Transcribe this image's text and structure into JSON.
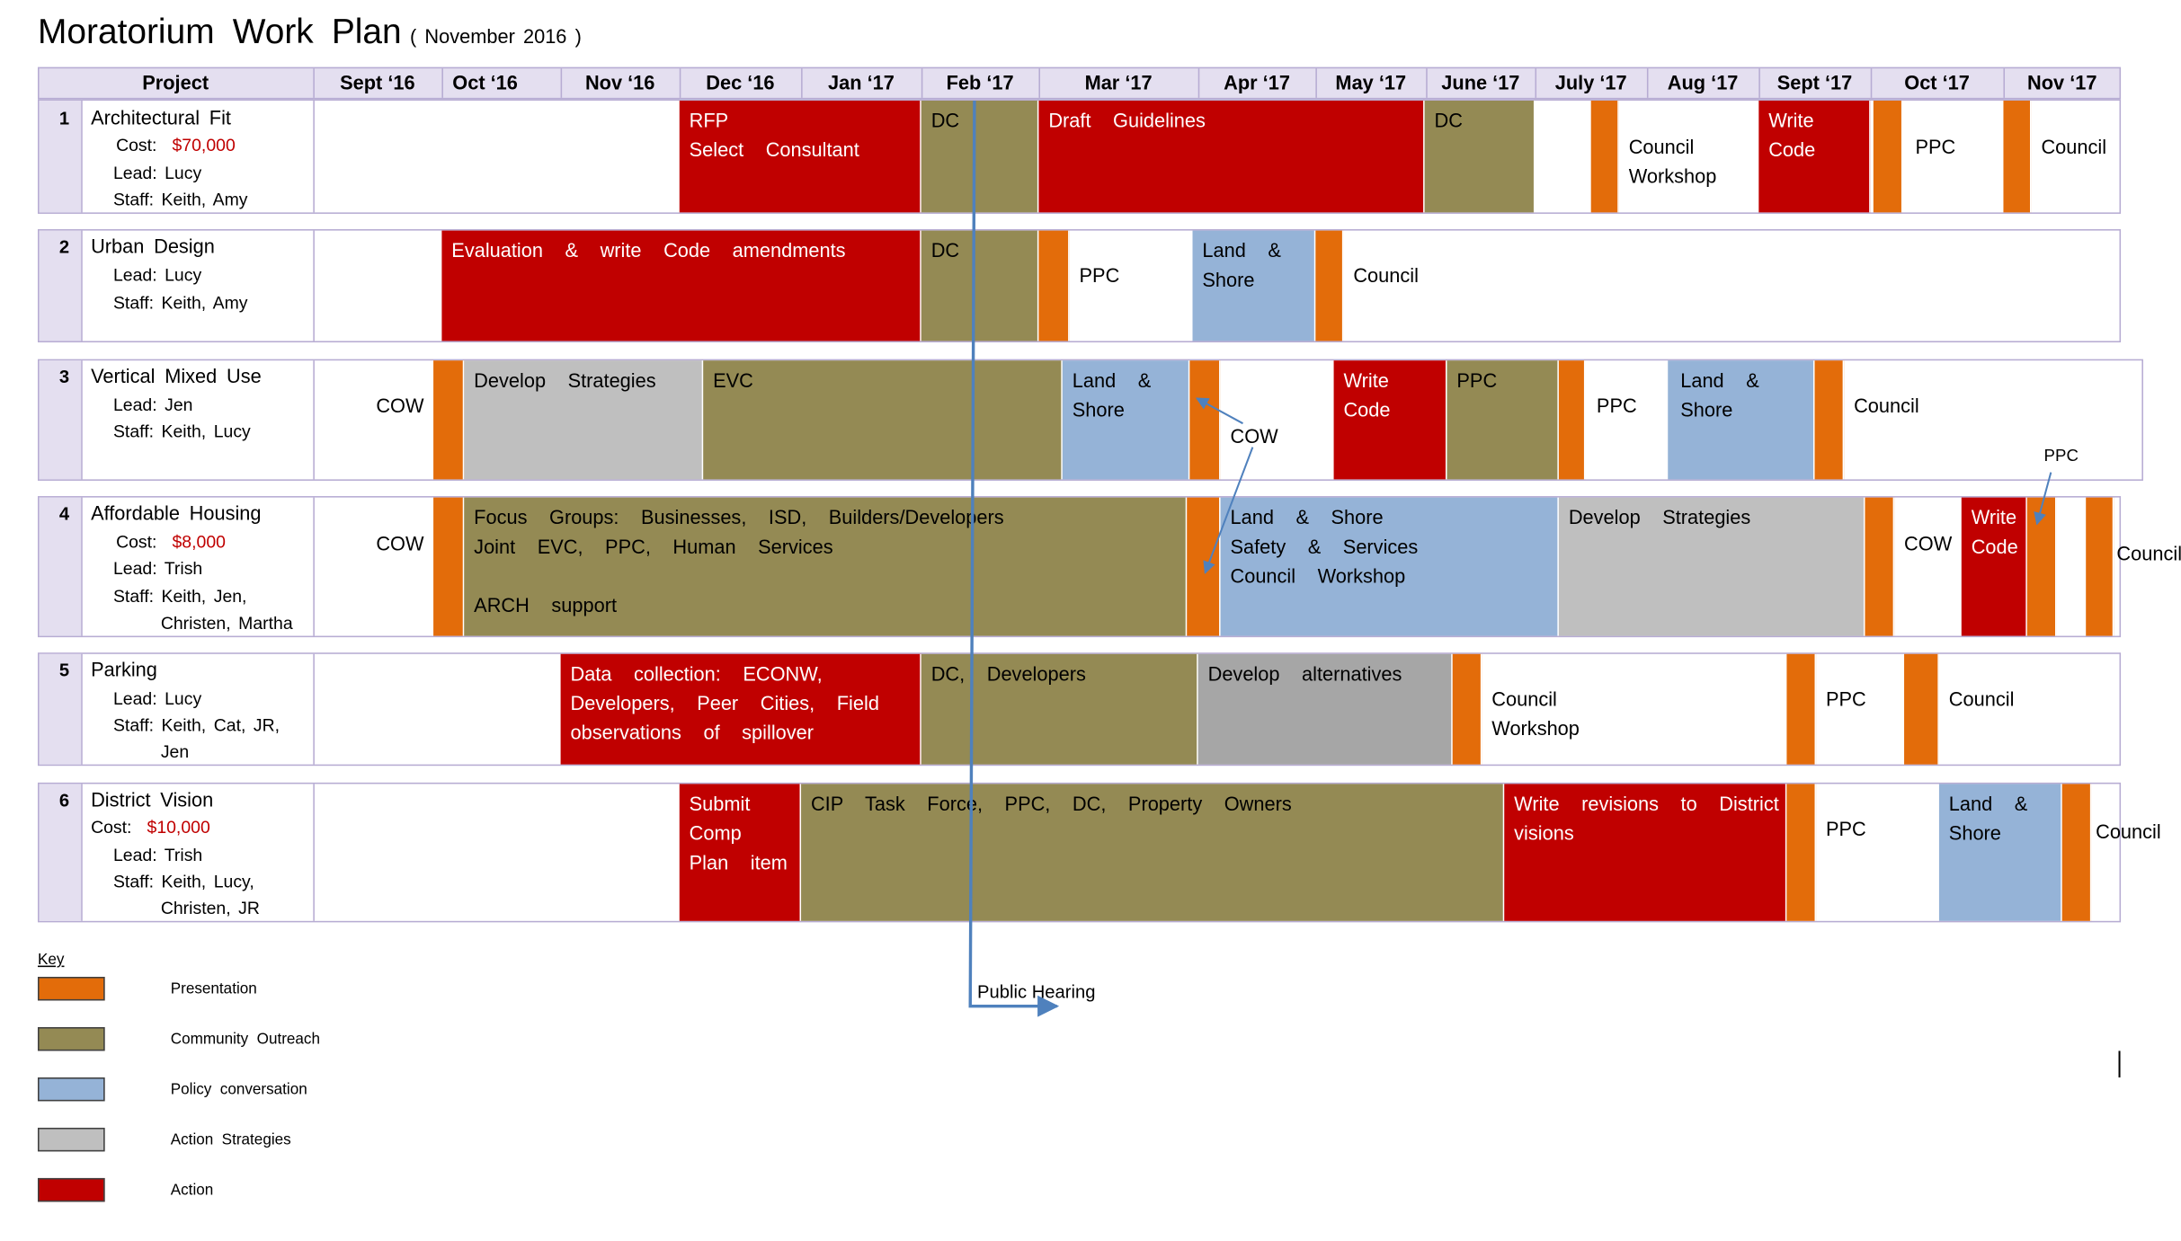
{
  "title": "Moratorium  Work  Plan",
  "subtitle": "( November  2016 )",
  "header": {
    "project": "Project",
    "months": [
      "Sept ‘16",
      "Oct ‘16",
      "Nov ‘16",
      "Dec ‘16",
      "Jan ‘17",
      "Feb ‘17",
      "Mar ‘17",
      "Apr ‘17",
      "May ‘17",
      "June ‘17",
      "July ‘17",
      "Aug ‘17",
      "Sept ‘17",
      "Oct ‘17",
      "Nov ‘17"
    ]
  },
  "colors": {
    "presentation": "#e36c0a",
    "community_outreach": "#948a54",
    "policy_conversation": "#95b3d7",
    "action_strategies": "#bfbfbf",
    "action": "#c00000",
    "grid": "#b7acd3",
    "header_bg": "#e4dff0",
    "arrow": "#4f81bd"
  },
  "projects": [
    {
      "num": "1",
      "name": "Architectural  Fit",
      "cost_label": "Cost:",
      "cost": "$70,000",
      "lead": "Lead:  Lucy",
      "staff": "Staff:  Keith,  Amy",
      "texts": [
        "RFP\nSelect  Consultant",
        "DC",
        "Draft  Guidelines",
        "DC",
        "Council\nWorkshop",
        "Write\nCode",
        "PPC",
        "Council"
      ]
    },
    {
      "num": "2",
      "name": "Urban  Design",
      "lead": "Lead:  Lucy",
      "staff": "Staff:  Keith,  Amy",
      "texts": [
        "Evaluation  &  write  Code  amendments",
        "DC",
        "PPC",
        "Land  &\nShore",
        "Council"
      ]
    },
    {
      "num": "3",
      "name": "Vertical  Mixed  Use",
      "lead": "Lead:  Jen",
      "staff": "Staff:  Keith,  Lucy",
      "texts": [
        "COW",
        "Develop  Strategies",
        "EVC",
        "Land  &\nShore",
        "COW",
        "Write\nCode",
        "PPC",
        "PPC",
        "Land  &\nShore",
        "Council",
        "PPC"
      ]
    },
    {
      "num": "4",
      "name": "Affordable  Housing",
      "cost_label": "Cost:",
      "cost": "$8,000",
      "lead": "Lead:  Trish",
      "staff": "Staff:  Keith,  Jen,",
      "staff2": "Christen,  Martha",
      "texts": [
        "COW",
        "Focus  Groups:  Businesses,  ISD,  Builders/Developers\nJoint  EVC,  PPC,  Human  Services\n\nARCH  support",
        "Land  &  Shore\nSafety  &  Services\nCouncil  Workshop",
        "Develop  Strategies",
        "COW",
        "Write\nCode",
        "Council"
      ]
    },
    {
      "num": "5",
      "name": "Parking",
      "lead": "Lead:  Lucy",
      "staff": "Staff:  Keith,  Cat,  JR,",
      "staff2": "Jen",
      "texts": [
        "Data  collection:  ECONW,\nDevelopers,  Peer  Cities,  Field\nobservations  of  spillover",
        "DC,  Developers",
        "Develop  alternatives",
        "Council\nWorkshop",
        "PPC",
        "Council"
      ]
    },
    {
      "num": "6",
      "name": "District  Vision",
      "cost_label": "Cost:",
      "cost": "$10,000",
      "lead": "Lead:  Trish",
      "staff": "Staff:  Keith,  Lucy,",
      "staff2": "Christen,  JR",
      "texts": [
        "Submit\nComp\nPlan  item",
        "CIP  Task  Force,  PPC,  DC,  Property  Owners",
        "Write  revisions  to  District\nvisions",
        "PPC",
        "Land  &\nShore",
        "Council"
      ]
    }
  ],
  "public_hearing": "Public Hearing",
  "key": {
    "label": "Key",
    "items": [
      {
        "name": "Presentation",
        "color": "#e36c0a"
      },
      {
        "name": "Community  Outreach",
        "color": "#948a54"
      },
      {
        "name": "Policy  conversation",
        "color": "#95b3d7"
      },
      {
        "name": "Action  Strategies",
        "color": "#bfbfbf"
      },
      {
        "name": "Action",
        "color": "#c00000"
      }
    ]
  }
}
